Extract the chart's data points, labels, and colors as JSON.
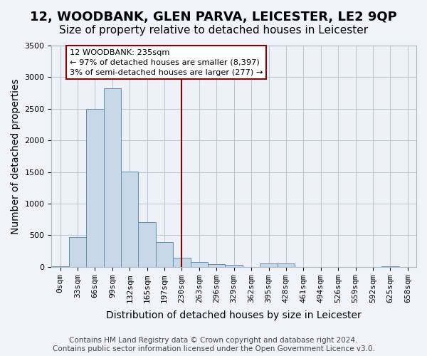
{
  "title": "12, WOODBANK, GLEN PARVA, LEICESTER, LE2 9QP",
  "subtitle": "Size of property relative to detached houses in Leicester",
  "xlabel": "Distribution of detached houses by size in Leicester",
  "ylabel": "Number of detached properties",
  "bar_color": "#c8d8e8",
  "bar_edge_color": "#6090b0",
  "background_color": "#eef2f8",
  "fig_background_color": "#f0f4fa",
  "bin_labels": [
    "0sqm",
    "33sqm",
    "66sqm",
    "99sqm",
    "132sqm",
    "165sqm",
    "197sqm",
    "230sqm",
    "263sqm",
    "296sqm",
    "329sqm",
    "362sqm",
    "395sqm",
    "428sqm",
    "461sqm",
    "494sqm",
    "526sqm",
    "559sqm",
    "592sqm",
    "625sqm",
    "658sqm"
  ],
  "bar_values": [
    5,
    470,
    2500,
    2820,
    1510,
    710,
    390,
    140,
    80,
    40,
    30,
    0,
    50,
    50,
    0,
    0,
    0,
    0,
    0,
    10,
    0
  ],
  "ylim": [
    0,
    3500
  ],
  "yticks": [
    0,
    500,
    1000,
    1500,
    2000,
    2500,
    3000,
    3500
  ],
  "property_line_index": 7,
  "property_line_label": "12 WOODBANK: 235sqm",
  "annotation_line1": "← 97% of detached houses are smaller (8,397)",
  "annotation_line2": "3% of semi-detached houses are larger (277) →",
  "footer1": "Contains HM Land Registry data © Crown copyright and database right 2024.",
  "footer2": "Contains public sector information licensed under the Open Government Licence v3.0.",
  "grid_color": "#c0c8d8",
  "title_fontsize": 13,
  "subtitle_fontsize": 11,
  "axis_label_fontsize": 10,
  "tick_fontsize": 8,
  "footer_fontsize": 7.5,
  "annotation_fontsize": 8.2
}
